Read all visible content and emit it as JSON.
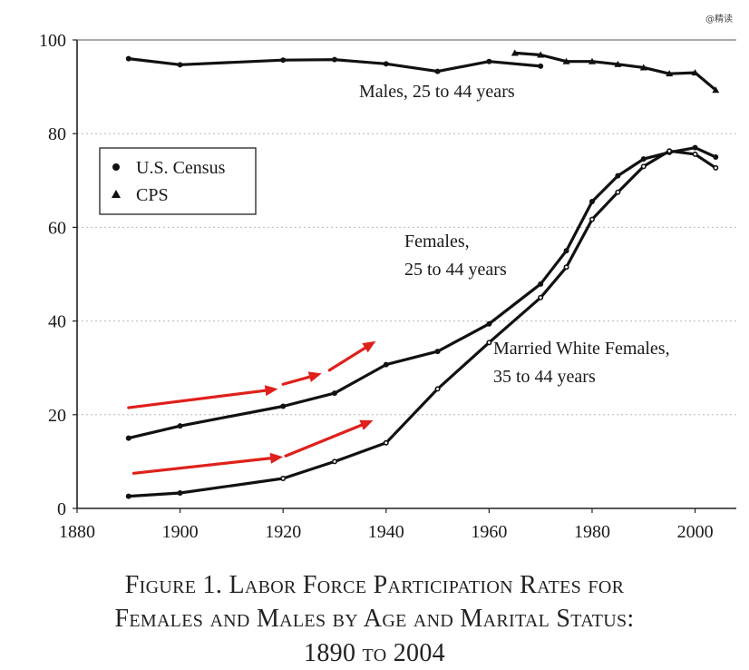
{
  "watermark": "@精读",
  "caption": {
    "line1": "Figure 1. Labor Force Participation Rates for",
    "line2": "Females and Males by Age and Marital Status:",
    "line3": "1890 to 2004"
  },
  "chart_data": {
    "type": "line",
    "title": "",
    "xlabel": "",
    "ylabel": "",
    "xlim": [
      1880,
      2008
    ],
    "ylim": [
      0,
      100
    ],
    "x_ticks": [
      1880,
      1900,
      1920,
      1940,
      1960,
      1980,
      2000
    ],
    "y_ticks": [
      0,
      20,
      40,
      60,
      80,
      100
    ],
    "grid": "horizontal dotted",
    "legend": {
      "placement": "upper-left",
      "entries": [
        {
          "marker": "circle",
          "label": "U.S. Census"
        },
        {
          "marker": "triangle",
          "label": "CPS"
        }
      ]
    },
    "series": [
      {
        "label_lines": [
          "Males, 25 to 44 years"
        ],
        "source": "census",
        "points": [
          [
            1890,
            96
          ],
          [
            1900,
            94.7
          ],
          [
            1920,
            95.7
          ],
          [
            1930,
            95.8
          ],
          [
            1940,
            94.9
          ],
          [
            1950,
            93.3
          ],
          [
            1960,
            95.4
          ],
          [
            1970,
            94.4
          ]
        ]
      },
      {
        "source": "cps",
        "points": [
          [
            1965,
            97.2
          ],
          [
            1970,
            96.8
          ],
          [
            1975,
            95.4
          ],
          [
            1980,
            95.4
          ],
          [
            1985,
            94.8
          ],
          [
            1990,
            94.1
          ],
          [
            1995,
            92.8
          ],
          [
            2000,
            93
          ],
          [
            2004,
            89.3
          ]
        ]
      },
      {
        "label_lines": [
          "Females,",
          "25 to 44 years"
        ],
        "source": "census",
        "points": [
          [
            1890,
            15
          ],
          [
            1900,
            17.6
          ],
          [
            1920,
            21.8
          ],
          [
            1930,
            24.6
          ],
          [
            1940,
            30.7
          ],
          [
            1950,
            33.5
          ],
          [
            1960,
            39.4
          ],
          [
            1970,
            47.9
          ],
          [
            1975,
            55
          ],
          [
            1980,
            65.5
          ],
          [
            1985,
            71
          ],
          [
            1990,
            74.6
          ],
          [
            1995,
            76
          ],
          [
            2000,
            77
          ],
          [
            2004,
            75
          ]
        ]
      },
      {
        "label_lines": [
          "Married White Females,",
          "35 to 44 years"
        ],
        "source": "census",
        "points": [
          [
            1890,
            2.6
          ],
          [
            1900,
            3.3
          ],
          [
            1920,
            6.4
          ],
          [
            1930,
            10
          ],
          [
            1940,
            14
          ],
          [
            1950,
            25.5
          ],
          [
            1960,
            35.4
          ],
          [
            1970,
            45
          ],
          [
            1975,
            51.5
          ],
          [
            1980,
            61.7
          ],
          [
            1985,
            67.5
          ],
          [
            1990,
            73
          ],
          [
            1995,
            76.3
          ],
          [
            2000,
            75.6
          ],
          [
            2004,
            72.7
          ]
        ]
      }
    ],
    "annotations": [
      {
        "type": "arrow",
        "color": "#e0201b",
        "from": [
          1890,
          21.5
        ],
        "to": [
          1919,
          25.5
        ]
      },
      {
        "type": "arrow",
        "color": "#e0201b",
        "from": [
          1920,
          26.5
        ],
        "to": [
          1927.5,
          28.8
        ]
      },
      {
        "type": "arrow",
        "color": "#e0201b",
        "from": [
          1929,
          29.5
        ],
        "to": [
          1938,
          35.7
        ]
      },
      {
        "type": "arrow",
        "color": "#e0201b",
        "from": [
          1891,
          7.5
        ],
        "to": [
          1920,
          11
        ]
      },
      {
        "type": "arrow",
        "color": "#e0201b",
        "from": [
          1920.5,
          11.2
        ],
        "to": [
          1937.5,
          18.8
        ]
      }
    ]
  }
}
